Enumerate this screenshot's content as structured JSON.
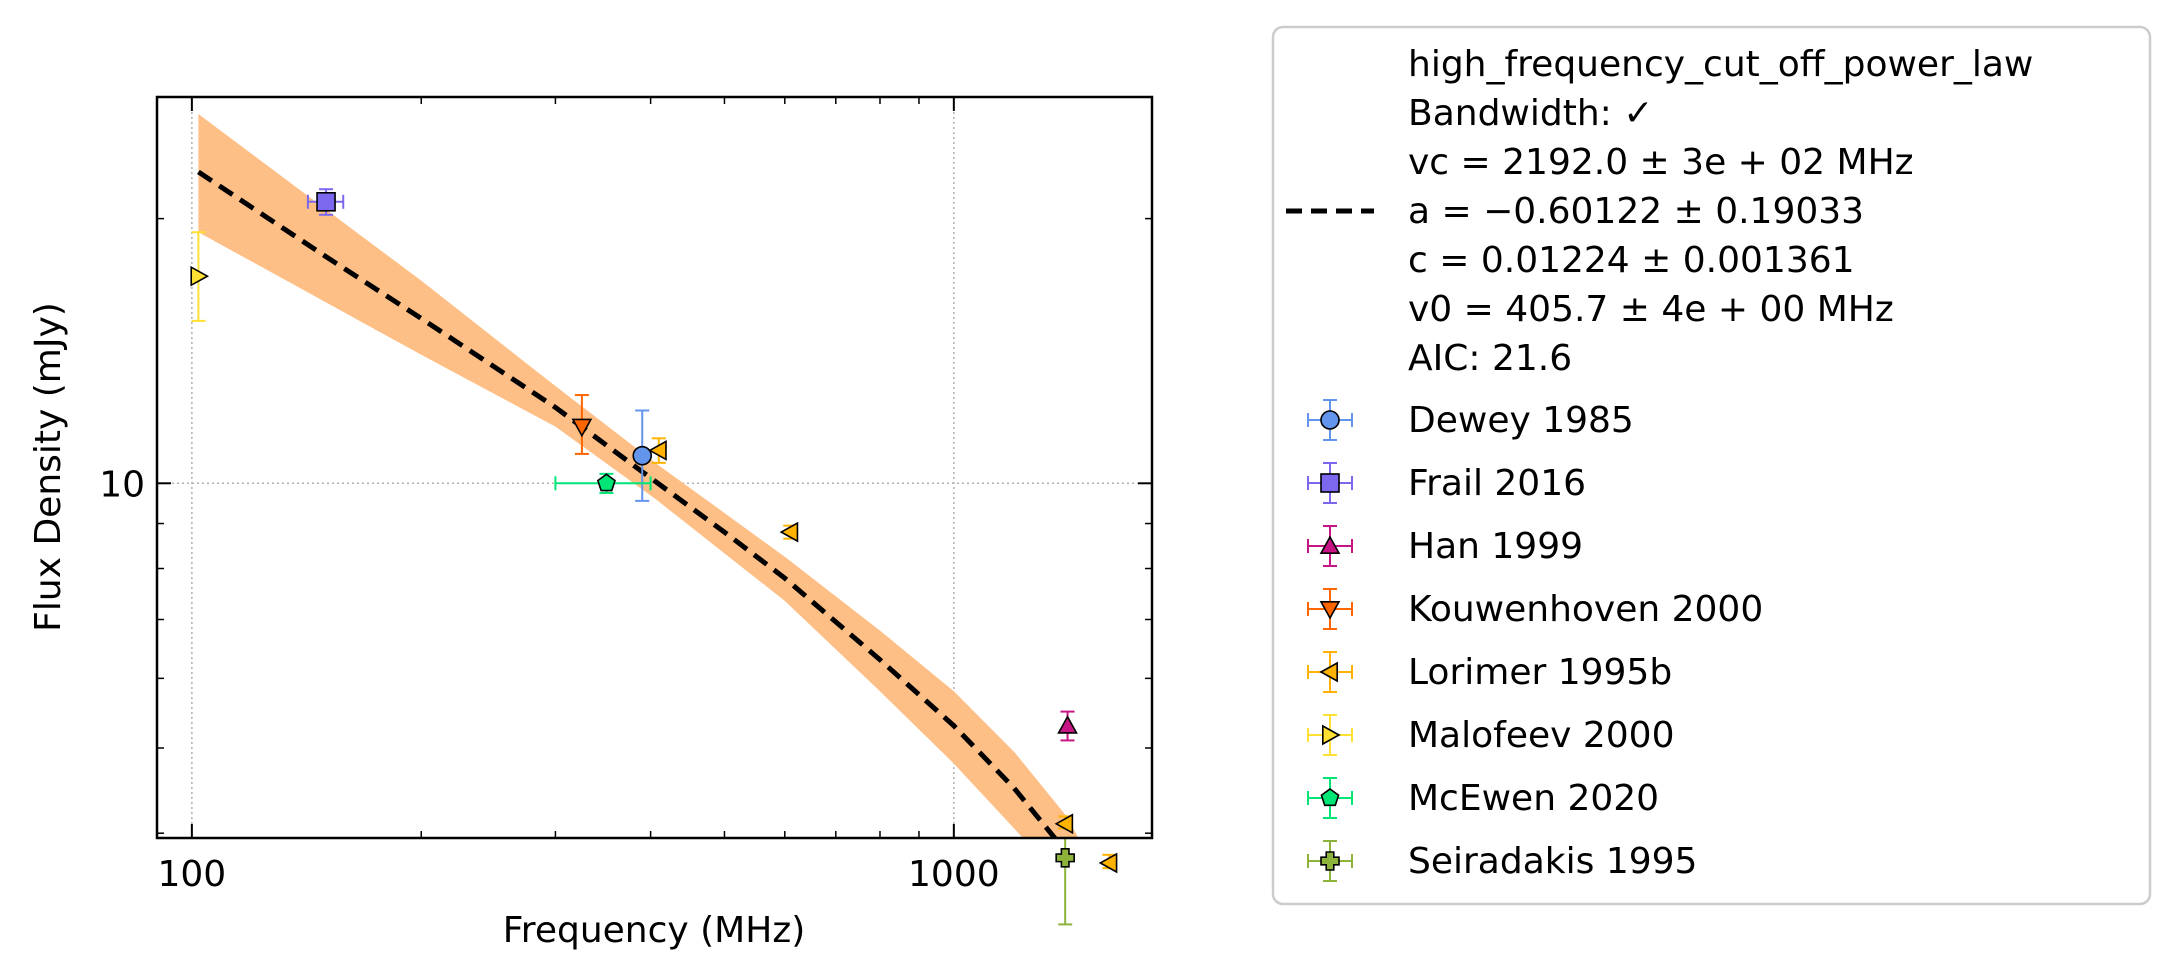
{
  "chart_data": {
    "type": "scatter",
    "title": "",
    "xlabel": "Frequency (MHz)",
    "ylabel": "Flux Density (mJy)",
    "xscale": "log",
    "yscale": "log",
    "xlim": [
      90,
      1820
    ],
    "ylim": [
      3.95,
      27.5
    ],
    "grid": true,
    "legend_placement": "outside right",
    "x_ticks": [
      {
        "value": 100,
        "label": "100"
      },
      {
        "value": 1000,
        "label": "1000"
      }
    ],
    "y_ticks": [
      {
        "value": 10,
        "label": "10"
      }
    ],
    "fit": {
      "model_name": "high_frequency_cut_off_power_law",
      "label_lines": [
        "high_frequency_cut_off_power_law",
        "Bandwidth: ✓",
        "vc = 2192.0 ± 3e + 02 MHz",
        "a = −0.60122 ± 0.19033",
        "c = 0.01224 ± 0.001361",
        "v0 = 405.7 ± 4e + 00 MHz",
        "AIC: 21.6"
      ],
      "line_style": "dashed",
      "line_color": "#000000",
      "band_color": "#fdbf86",
      "curve": [
        {
          "x": 102,
          "y": 22.6
        },
        {
          "x": 150,
          "y": 18.1
        },
        {
          "x": 200,
          "y": 15.4
        },
        {
          "x": 300,
          "y": 12.2
        },
        {
          "x": 405.7,
          "y": 10.05
        },
        {
          "x": 500,
          "y": 8.8
        },
        {
          "x": 600,
          "y": 7.8
        },
        {
          "x": 800,
          "y": 6.3
        },
        {
          "x": 1000,
          "y": 5.3
        },
        {
          "x": 1200,
          "y": 4.5
        },
        {
          "x": 1400,
          "y": 3.82
        },
        {
          "x": 1550,
          "y": 3.41
        },
        {
          "x": 1640,
          "y": 3.16
        }
      ],
      "band_upper": [
        {
          "x": 102,
          "y": 26.3
        },
        {
          "x": 200,
          "y": 17.0
        },
        {
          "x": 300,
          "y": 12.9
        },
        {
          "x": 405.7,
          "y": 10.55
        },
        {
          "x": 600,
          "y": 8.25
        },
        {
          "x": 800,
          "y": 6.8
        },
        {
          "x": 1000,
          "y": 5.8
        },
        {
          "x": 1200,
          "y": 4.95
        },
        {
          "x": 1400,
          "y": 4.2
        },
        {
          "x": 1640,
          "y": 3.3
        }
      ],
      "band_lower": [
        {
          "x": 102,
          "y": 19.3
        },
        {
          "x": 200,
          "y": 14.0
        },
        {
          "x": 300,
          "y": 11.6
        },
        {
          "x": 405.7,
          "y": 9.6
        },
        {
          "x": 600,
          "y": 7.35
        },
        {
          "x": 800,
          "y": 5.8
        },
        {
          "x": 1000,
          "y": 4.8
        },
        {
          "x": 1200,
          "y": 4.05
        },
        {
          "x": 1400,
          "y": 3.5
        },
        {
          "x": 1640,
          "y": 2.9
        }
      ]
    },
    "series": [
      {
        "name": "Dewey 1985",
        "marker": "circle",
        "color": "#6495ed",
        "points": [
          {
            "x": 390,
            "y": 10.75,
            "yerr_lo": 9.55,
            "yerr_hi": 12.1,
            "xerr_lo": 390,
            "xerr_hi": 390
          }
        ]
      },
      {
        "name": "Frail 2016",
        "marker": "square",
        "color": "#7b68ee",
        "points": [
          {
            "x": 150,
            "y": 20.9,
            "yerr_lo": 20.2,
            "yerr_hi": 21.6,
            "xerr_lo": 142,
            "xerr_hi": 158
          }
        ]
      },
      {
        "name": "Han 1999",
        "marker": "triangle-up",
        "color": "#c71585",
        "points": [
          {
            "x": 1410,
            "y": 5.3,
            "yerr_lo": 5.1,
            "yerr_hi": 5.5,
            "xerr_lo": 1410,
            "xerr_hi": 1410
          }
        ]
      },
      {
        "name": "Kouwenhoven 2000",
        "marker": "triangle-down",
        "color": "#ff6600",
        "points": [
          {
            "x": 325,
            "y": 11.6,
            "yerr_lo": 10.8,
            "yerr_hi": 12.6,
            "xerr_lo": 325,
            "xerr_hi": 325
          }
        ]
      },
      {
        "name": "Lorimer 1995b",
        "marker": "triangle-left",
        "color": "#ffb300",
        "points": [
          {
            "x": 410,
            "y": 10.9,
            "yerr_lo": 10.55,
            "yerr_hi": 11.25,
            "xerr_lo": 410,
            "xerr_hi": 410
          },
          {
            "x": 610,
            "y": 8.8,
            "yerr_lo": 8.65,
            "yerr_hi": 8.95,
            "xerr_lo": 610,
            "xerr_hi": 610
          },
          {
            "x": 1400,
            "y": 4.1,
            "yerr_lo": 4.05,
            "yerr_hi": 4.18,
            "xerr_lo": 1400,
            "xerr_hi": 1400
          },
          {
            "x": 1600,
            "y": 3.7,
            "yerr_lo": 3.65,
            "yerr_hi": 3.78,
            "xerr_lo": 1600,
            "xerr_hi": 1600
          }
        ]
      },
      {
        "name": "Malofeev 2000",
        "marker": "triangle-right",
        "color": "#ffe033",
        "points": [
          {
            "x": 102,
            "y": 17.2,
            "yerr_lo": 15.3,
            "yerr_hi": 19.3,
            "xerr_lo": 102,
            "xerr_hi": 102
          }
        ]
      },
      {
        "name": "McEwen 2020",
        "marker": "pentagon",
        "color": "#00e676",
        "points": [
          {
            "x": 350,
            "y": 10.0,
            "yerr_lo": 9.75,
            "yerr_hi": 10.25,
            "xerr_lo": 300,
            "xerr_hi": 400
          }
        ]
      },
      {
        "name": "Seiradakis 1995",
        "marker": "plus",
        "color": "#8db33a",
        "points": [
          {
            "x": 1400,
            "y": 3.75,
            "yerr_lo": 3.15,
            "yerr_hi": 3.95,
            "xerr_lo": 1400,
            "xerr_hi": 1400
          }
        ]
      }
    ]
  }
}
